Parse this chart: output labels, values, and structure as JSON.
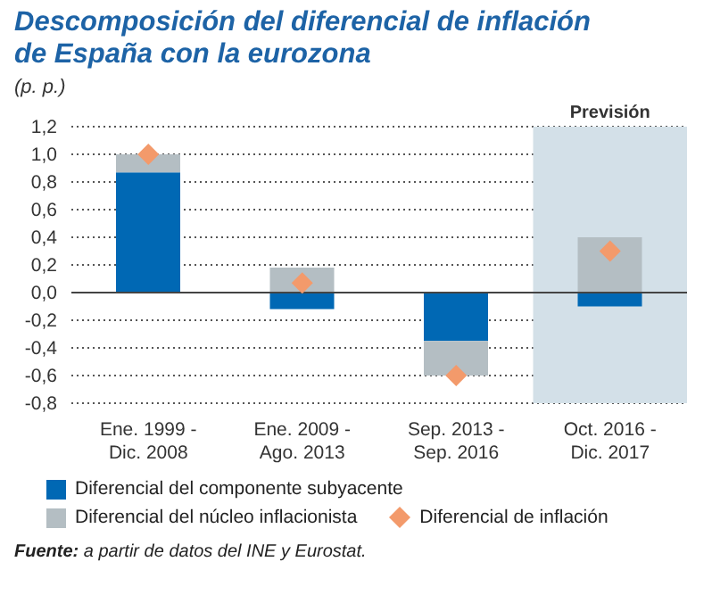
{
  "chart_data": {
    "type": "bar",
    "title": "Descomposición del diferencial de inflación de España con la eurozona",
    "ylabel": "(p. p.)",
    "categories": [
      "Ene. 1999 -\nDic. 2008",
      "Ene. 2009 -\nAgo. 2013",
      "Sep. 2013 -\nSep. 2016",
      "Oct. 2016 -\nDic. 2017"
    ],
    "stacked": true,
    "series": [
      {
        "name": "Diferencial del componente subyacente",
        "type": "bar",
        "color": "#0068b4",
        "values": [
          0.87,
          -0.12,
          -0.35,
          -0.1
        ]
      },
      {
        "name": "Diferencial del núcleo inflacionista",
        "type": "bar",
        "color": "#b4bec3",
        "values": [
          0.13,
          0.18,
          -0.25,
          0.4
        ]
      },
      {
        "name": "Diferencial de inflación",
        "type": "scatter",
        "marker": "diamond",
        "color": "#f39a6b",
        "x": [
          "Ene. 1999 -\nDic. 2008",
          "Ene. 2009 -\nAgo. 2013",
          "Sep. 2013 -\nSep. 2016",
          "Oct. 2016 -\nDic. 2017"
        ],
        "values": [
          1.0,
          0.07,
          -0.6,
          0.3
        ]
      }
    ],
    "ylim": [
      -0.8,
      1.2
    ],
    "yticks": [
      {
        "value": -0.8,
        "label": "-0,8"
      },
      {
        "value": -0.6,
        "label": "-0,6"
      },
      {
        "value": -0.4,
        "label": "-0,4"
      },
      {
        "value": -0.2,
        "label": "-0,2"
      },
      {
        "value": 0,
        "label": "0,0"
      },
      {
        "value": 0.2,
        "label": "0,2"
      },
      {
        "value": 0.4,
        "label": "0,4"
      },
      {
        "value": 0.6,
        "label": "0,6"
      },
      {
        "value": 0.8,
        "label": "0,8"
      },
      {
        "value": 1.0,
        "label": "1,0"
      },
      {
        "value": 1.2,
        "label": "1,2"
      }
    ],
    "grid": "y",
    "legend": "bottom",
    "bands": [
      {
        "axis": "x",
        "from": "Oct. 2016 -\nDic. 2017",
        "to": "Oct. 2016 -\nDic. 2017",
        "label": "Previsión",
        "color": "#d3e0e8"
      }
    ],
    "annotations": [
      "Fuente: a partir de datos del INE y Eurostat."
    ]
  }
}
